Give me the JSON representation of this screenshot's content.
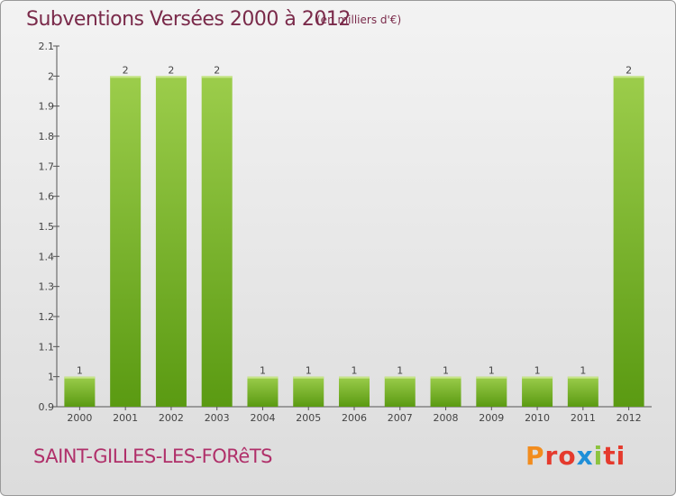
{
  "header": {
    "title": "Subventions Versées 2000 à 2012",
    "subtitle": "(en milliers d'€)"
  },
  "footer": {
    "commune": "SAINT-GILLES-LES-FORêTS",
    "logo": [
      "P",
      "ro",
      "x",
      "i",
      "ti"
    ]
  },
  "colors": {
    "bar_top": "#9ccd4b",
    "bar_bottom": "#5a9a12",
    "title": "#7a2a4a",
    "commune": "#b0306a"
  },
  "chart_data": {
    "type": "bar",
    "title": "Subventions Versées 2000 à 2012",
    "subtitle": "(en milliers d'€)",
    "categories": [
      "2000",
      "2001",
      "2002",
      "2003",
      "2004",
      "2005",
      "2006",
      "2007",
      "2008",
      "2009",
      "2010",
      "2011",
      "2012"
    ],
    "values": [
      1,
      2,
      2,
      2,
      1,
      1,
      1,
      1,
      1,
      1,
      1,
      1,
      2
    ],
    "data_labels": [
      "1",
      "2",
      "2",
      "2",
      "1",
      "1",
      "1",
      "1",
      "1",
      "1",
      "1",
      "1",
      "2"
    ],
    "yticks": [
      "0.9",
      "1",
      "1.1",
      "1.2",
      "1.3",
      "1.4",
      "1.5",
      "1.6",
      "1.7",
      "1.8",
      "1.9",
      "2",
      "2.1"
    ],
    "ylim": [
      0.9,
      2.1
    ],
    "grid": false,
    "legend": "none"
  }
}
